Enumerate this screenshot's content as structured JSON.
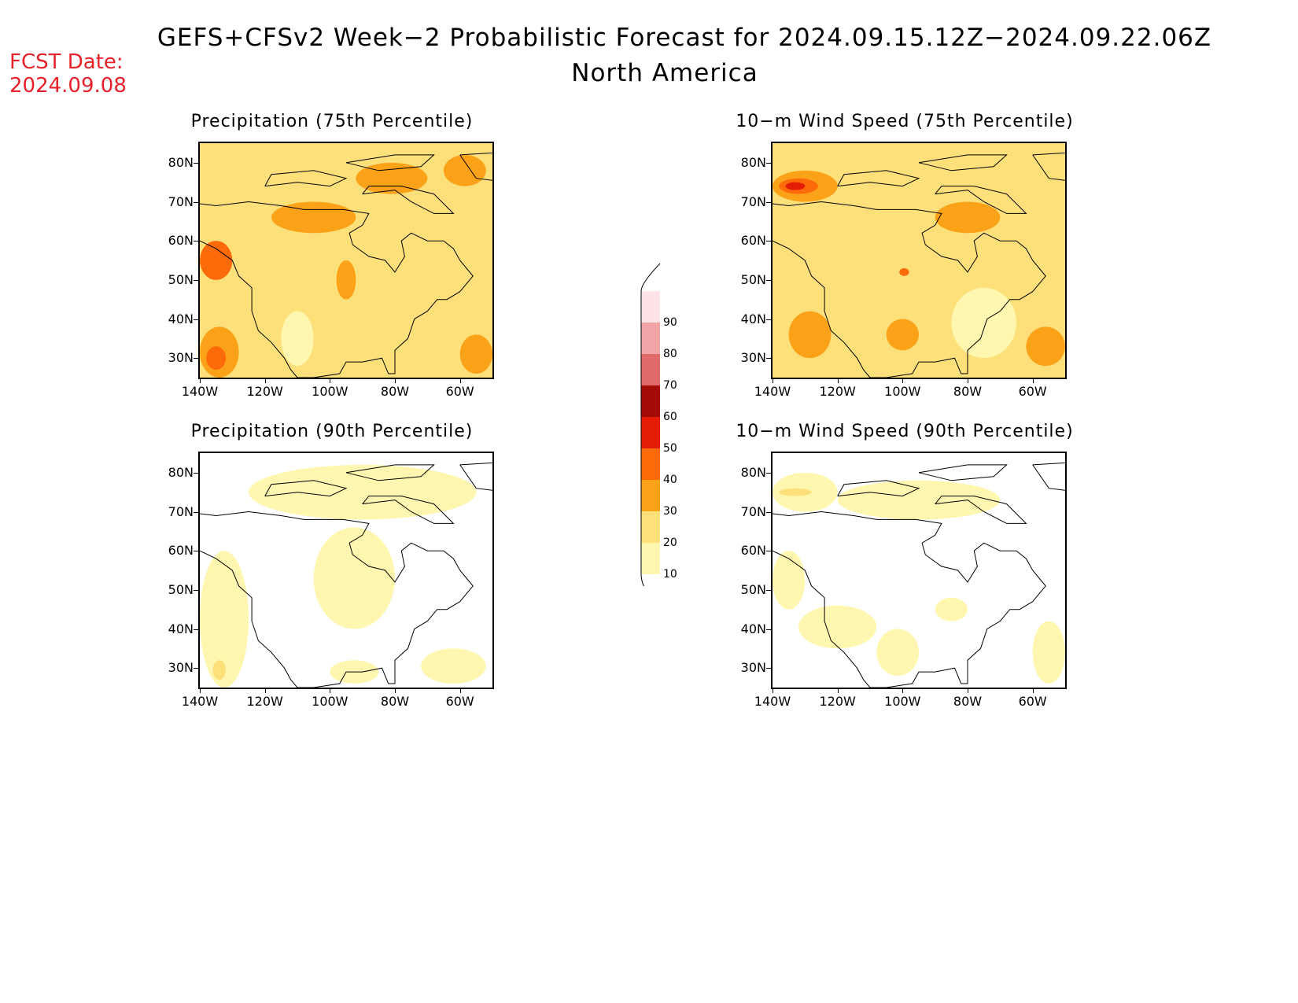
{
  "title": {
    "line1": "GEFS+CFSv2 Week−2 Probabilistic Forecast for 2024.09.15.12Z−2024.09.22.06Z",
    "line2": "North America"
  },
  "fcst_date": {
    "label": "FCST Date:",
    "value": "2024.09.08"
  },
  "map_extent": {
    "lon": [
      -140,
      -50
    ],
    "lat": [
      25,
      85
    ]
  },
  "lat_labels": [
    "30N",
    "40N",
    "50N",
    "60N",
    "70N",
    "80N"
  ],
  "lat_values": [
    30,
    40,
    50,
    60,
    70,
    80
  ],
  "lon_labels": [
    "140W",
    "120W",
    "100W",
    "80W",
    "60W"
  ],
  "lon_values": [
    -140,
    -120,
    -100,
    -80,
    -60
  ],
  "panels": [
    {
      "id": "precip75",
      "title": "Precipitation (75th Percentile)",
      "base_level": 20,
      "regions": [
        {
          "level": 30,
          "lon": [
            -118,
            -92
          ],
          "lat": [
            62,
            70
          ]
        },
        {
          "level": 30,
          "lon": [
            -92,
            -70
          ],
          "lat": [
            72,
            80
          ]
        },
        {
          "level": 30,
          "lon": [
            -65,
            -52
          ],
          "lat": [
            74,
            82
          ]
        },
        {
          "level": 30,
          "lon": [
            -98,
            -92
          ],
          "lat": [
            45,
            55
          ]
        },
        {
          "level": 30,
          "lon": [
            -140,
            -128
          ],
          "lat": [
            25,
            38
          ]
        },
        {
          "level": 30,
          "lon": [
            -60,
            -50
          ],
          "lat": [
            26,
            36
          ]
        },
        {
          "level": 40,
          "lon": [
            -140,
            -130
          ],
          "lat": [
            50,
            60
          ]
        },
        {
          "level": 40,
          "lon": [
            -138,
            -132
          ],
          "lat": [
            27,
            33
          ]
        },
        {
          "level": 10,
          "lon": [
            -115,
            -105
          ],
          "lat": [
            28,
            42
          ]
        }
      ]
    },
    {
      "id": "wind75",
      "title": "10−m Wind Speed (75th Percentile)",
      "base_level": 20,
      "regions": [
        {
          "level": 30,
          "lon": [
            -140,
            -120
          ],
          "lat": [
            70,
            78
          ]
        },
        {
          "level": 40,
          "lon": [
            -138,
            -126
          ],
          "lat": [
            72,
            76
          ]
        },
        {
          "level": 50,
          "lon": [
            -136,
            -130
          ],
          "lat": [
            73,
            75
          ]
        },
        {
          "level": 30,
          "lon": [
            -135,
            -122
          ],
          "lat": [
            30,
            42
          ]
        },
        {
          "level": 30,
          "lon": [
            -62,
            -50
          ],
          "lat": [
            28,
            38
          ]
        },
        {
          "level": 30,
          "lon": [
            -90,
            -70
          ],
          "lat": [
            62,
            70
          ]
        },
        {
          "level": 30,
          "lon": [
            -105,
            -95
          ],
          "lat": [
            32,
            40
          ]
        },
        {
          "level": 40,
          "lon": [
            -101,
            -98
          ],
          "lat": [
            51,
            53
          ]
        },
        {
          "level": 10,
          "lon": [
            -85,
            -65
          ],
          "lat": [
            30,
            48
          ]
        }
      ]
    },
    {
      "id": "precip90",
      "title": "Precipitation (90th Percentile)",
      "base_level": 0,
      "regions": [
        {
          "level": 10,
          "lon": [
            -125,
            -55
          ],
          "lat": [
            68,
            82
          ]
        },
        {
          "level": 10,
          "lon": [
            -105,
            -80
          ],
          "lat": [
            40,
            66
          ]
        },
        {
          "level": 10,
          "lon": [
            -140,
            -125
          ],
          "lat": [
            25,
            60
          ]
        },
        {
          "level": 10,
          "lon": [
            -72,
            -52
          ],
          "lat": [
            26,
            35
          ]
        },
        {
          "level": 10,
          "lon": [
            -100,
            -85
          ],
          "lat": [
            26,
            32
          ]
        },
        {
          "level": 20,
          "lon": [
            -136,
            -132
          ],
          "lat": [
            27,
            32
          ]
        }
      ]
    },
    {
      "id": "wind90",
      "title": "10−m Wind Speed (90th Percentile)",
      "base_level": 0,
      "regions": [
        {
          "level": 10,
          "lon": [
            -140,
            -120
          ],
          "lat": [
            70,
            80
          ]
        },
        {
          "level": 20,
          "lon": [
            -138,
            -128
          ],
          "lat": [
            74,
            76
          ]
        },
        {
          "level": 10,
          "lon": [
            -120,
            -70
          ],
          "lat": [
            68,
            78
          ]
        },
        {
          "level": 10,
          "lon": [
            -140,
            -130
          ],
          "lat": [
            45,
            60
          ]
        },
        {
          "level": 10,
          "lon": [
            -132,
            -108
          ],
          "lat": [
            35,
            46
          ]
        },
        {
          "level": 10,
          "lon": [
            -108,
            -95
          ],
          "lat": [
            28,
            40
          ]
        },
        {
          "level": 10,
          "lon": [
            -60,
            -50
          ],
          "lat": [
            26,
            42
          ]
        },
        {
          "level": 10,
          "lon": [
            -90,
            -80
          ],
          "lat": [
            42,
            48
          ]
        }
      ]
    }
  ],
  "colorbar": {
    "levels": [
      10,
      20,
      30,
      40,
      50,
      60,
      70,
      80,
      90
    ],
    "labels": [
      "10",
      "20",
      "30",
      "40",
      "50",
      "60",
      "70",
      "80",
      "90"
    ],
    "colors": [
      "#fff7b0",
      "#fde07a",
      "#fca219",
      "#fd6a09",
      "#e41c06",
      "#a30c06",
      "#e0696a",
      "#f2a3a5",
      "#fde2e6"
    ]
  }
}
